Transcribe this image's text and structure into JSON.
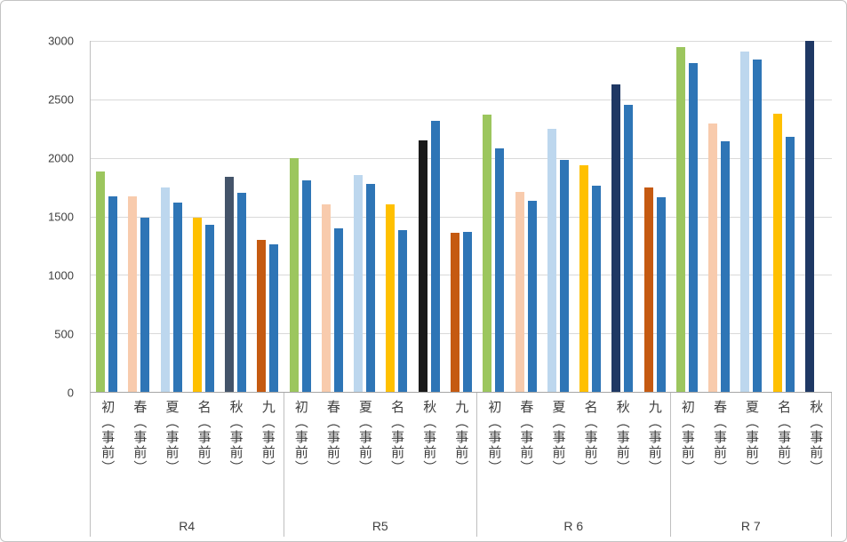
{
  "chart_data": {
    "type": "bar",
    "title": "",
    "xlabel": "",
    "ylabel": "",
    "ylim": [
      0,
      3000
    ],
    "yticks": [
      0,
      500,
      1000,
      1500,
      2000,
      2500,
      3000
    ],
    "grid": true,
    "legend": "none",
    "secondary_color": "#2E75B6",
    "groups": [
      {
        "label": "R4",
        "items": [
          {
            "label": "初（事前）",
            "color": "#9CC65E",
            "values": [
              1880,
              1670
            ]
          },
          {
            "label": "春（事前）",
            "color": "#F8CBAD",
            "values": [
              1670,
              1490
            ]
          },
          {
            "label": "夏（事前）",
            "color": "#BDD7EE",
            "values": [
              1750,
              1620
            ]
          },
          {
            "label": "名（事前）",
            "color": "#FFC000",
            "values": [
              1490,
              1430
            ]
          },
          {
            "label": "秋（事前）",
            "color": "#44546A",
            "values": [
              1840,
              1700
            ]
          },
          {
            "label": "九（事前）",
            "color": "#C55A11",
            "values": [
              1300,
              1260
            ]
          }
        ]
      },
      {
        "label": "R5",
        "items": [
          {
            "label": "初（事前）",
            "color": "#9CC65E",
            "values": [
              2000,
              1810
            ]
          },
          {
            "label": "春（事前）",
            "color": "#F8CBAD",
            "values": [
              1600,
              1400
            ]
          },
          {
            "label": "夏（事前）",
            "color": "#BDD7EE",
            "values": [
              1850,
              1780
            ]
          },
          {
            "label": "名（事前）",
            "color": "#FFC000",
            "values": [
              1600,
              1380
            ]
          },
          {
            "label": "秋（事前）",
            "color": "#1A1A1A",
            "values": [
              2150,
              2320
            ]
          },
          {
            "label": "九（事前）",
            "color": "#C55A11",
            "values": [
              1360,
              1370
            ]
          }
        ]
      },
      {
        "label": "R 6",
        "items": [
          {
            "label": "初（事前）",
            "color": "#9CC65E",
            "values": [
              2370,
              2080
            ]
          },
          {
            "label": "春（事前）",
            "color": "#F8CBAD",
            "values": [
              1710,
              1630
            ]
          },
          {
            "label": "夏（事前）",
            "color": "#BDD7EE",
            "values": [
              2250,
              1980
            ]
          },
          {
            "label": "名（事前）",
            "color": "#FFC000",
            "values": [
              1940,
              1760
            ]
          },
          {
            "label": "秋（事前）",
            "color": "#1F3864",
            "values": [
              2630,
              2450
            ]
          },
          {
            "label": "九（事前）",
            "color": "#C55A11",
            "values": [
              1750,
              1660
            ]
          }
        ]
      },
      {
        "label": "R 7",
        "items": [
          {
            "label": "初（事前）",
            "color": "#9CC65E",
            "values": [
              2950,
              2810
            ]
          },
          {
            "label": "春（事前）",
            "color": "#F8CBAD",
            "values": [
              2290,
              2140
            ]
          },
          {
            "label": "夏（事前）",
            "color": "#BDD7EE",
            "values": [
              2910,
              2840
            ]
          },
          {
            "label": "名（事前）",
            "color": "#FFC000",
            "values": [
              2380,
              2180
            ]
          },
          {
            "label": "秋（事前）",
            "color": "#1F3864",
            "values": [
              3000
            ]
          }
        ]
      }
    ]
  }
}
